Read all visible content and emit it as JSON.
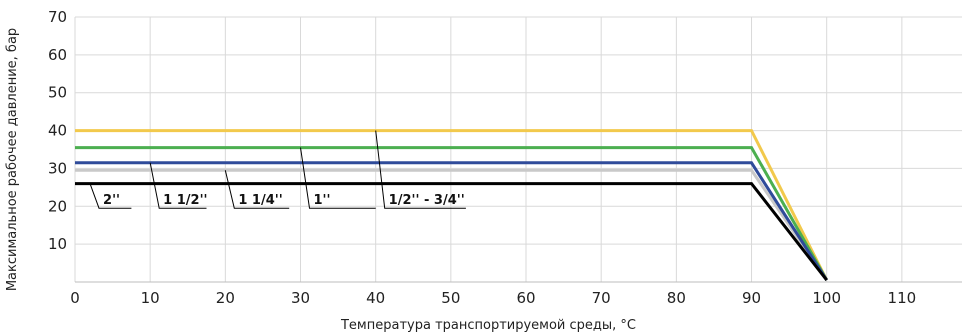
{
  "chart_data": {
    "type": "line",
    "title": "",
    "xlabel": "Температура транспортируемой среды, °C",
    "ylabel": "Максимальное рабочее давление, бар",
    "xlim": [
      0,
      118
    ],
    "ylim": [
      0,
      70
    ],
    "x_ticks": [
      0,
      10,
      20,
      30,
      40,
      50,
      60,
      70,
      80,
      90,
      100,
      110
    ],
    "y_ticks": [
      10,
      20,
      30,
      40,
      50,
      60,
      70
    ],
    "grid": true,
    "legend": "none",
    "series": [
      {
        "name": "1/2'' - 3/4''",
        "color": "#F2C94C",
        "points": [
          [
            0,
            40
          ],
          [
            90,
            40
          ],
          [
            100,
            0.5
          ]
        ],
        "label_x": [
          40,
          52
        ],
        "label_y": 19.5
      },
      {
        "name": "1''",
        "color": "#4CAF50",
        "points": [
          [
            0,
            35.5
          ],
          [
            90,
            35.5
          ],
          [
            100,
            0.5
          ]
        ],
        "label_x": [
          30,
          40
        ],
        "label_y": 19.5
      },
      {
        "name": "1 1/4''",
        "color": "#C9C9C9",
        "points": [
          [
            0,
            29.5
          ],
          [
            90,
            29.5
          ],
          [
            100,
            0.5
          ]
        ],
        "label_x": [
          20,
          28.5
        ],
        "label_y": 19.5
      },
      {
        "name": "1 1/2''",
        "color": "#2F4B9A",
        "points": [
          [
            0,
            31.5
          ],
          [
            90,
            31.5
          ],
          [
            100,
            0.5
          ]
        ],
        "label_x": [
          10,
          17.5
        ],
        "label_y": 19.5
      },
      {
        "name": "2''",
        "color": "#000000",
        "points": [
          [
            0,
            26
          ],
          [
            90,
            26
          ],
          [
            100,
            0.5
          ]
        ],
        "label_x": [
          2,
          7.5
        ],
        "label_y": 19.5
      }
    ]
  }
}
